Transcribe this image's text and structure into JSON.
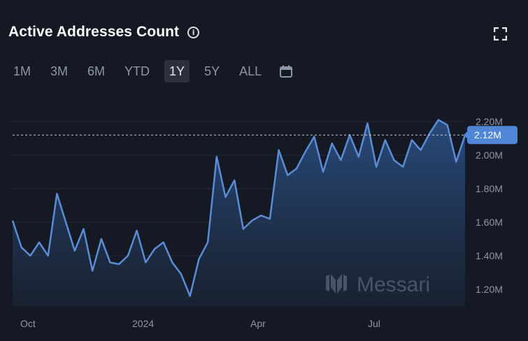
{
  "header": {
    "title": "Active Addresses Count"
  },
  "ranges": [
    "1M",
    "3M",
    "6M",
    "YTD",
    "1Y",
    "5Y",
    "ALL"
  ],
  "active_range": "1Y",
  "watermark": "Messari",
  "colors": {
    "line": "#5a8dd6",
    "accent": "#4f86d6",
    "background": "#151924"
  },
  "icons": {
    "info": "info-icon",
    "expand": "expand-icon",
    "calendar": "calendar-icon"
  },
  "chart_data": {
    "type": "area",
    "title": "Active Addresses Count",
    "xlabel": "",
    "ylabel": "",
    "x_ticks": [
      "Oct",
      "2024",
      "Apr",
      "Jul"
    ],
    "y_ticks": [
      "1.20M",
      "1.40M",
      "1.60M",
      "1.80M",
      "2.00M",
      "2.20M"
    ],
    "ylim": [
      1.1,
      2.3
    ],
    "last_value_label": "2.12M",
    "last_value": 2.12,
    "grid": true,
    "series": [
      {
        "values": [
          1.61,
          1.45,
          1.4,
          1.48,
          1.4,
          1.77,
          1.6,
          1.43,
          1.56,
          1.31,
          1.5,
          1.36,
          1.35,
          1.4,
          1.55,
          1.36,
          1.44,
          1.48,
          1.36,
          1.29,
          1.16,
          1.38,
          1.48,
          1.99,
          1.75,
          1.85,
          1.56,
          1.61,
          1.64,
          1.62,
          2.03,
          1.88,
          1.92,
          2.02,
          2.11,
          1.9,
          2.07,
          1.97,
          2.12,
          1.99,
          2.19,
          1.93,
          2.09,
          1.97,
          1.93,
          2.09,
          2.03,
          2.13,
          2.21,
          2.18,
          1.96,
          2.12
        ]
      }
    ]
  }
}
